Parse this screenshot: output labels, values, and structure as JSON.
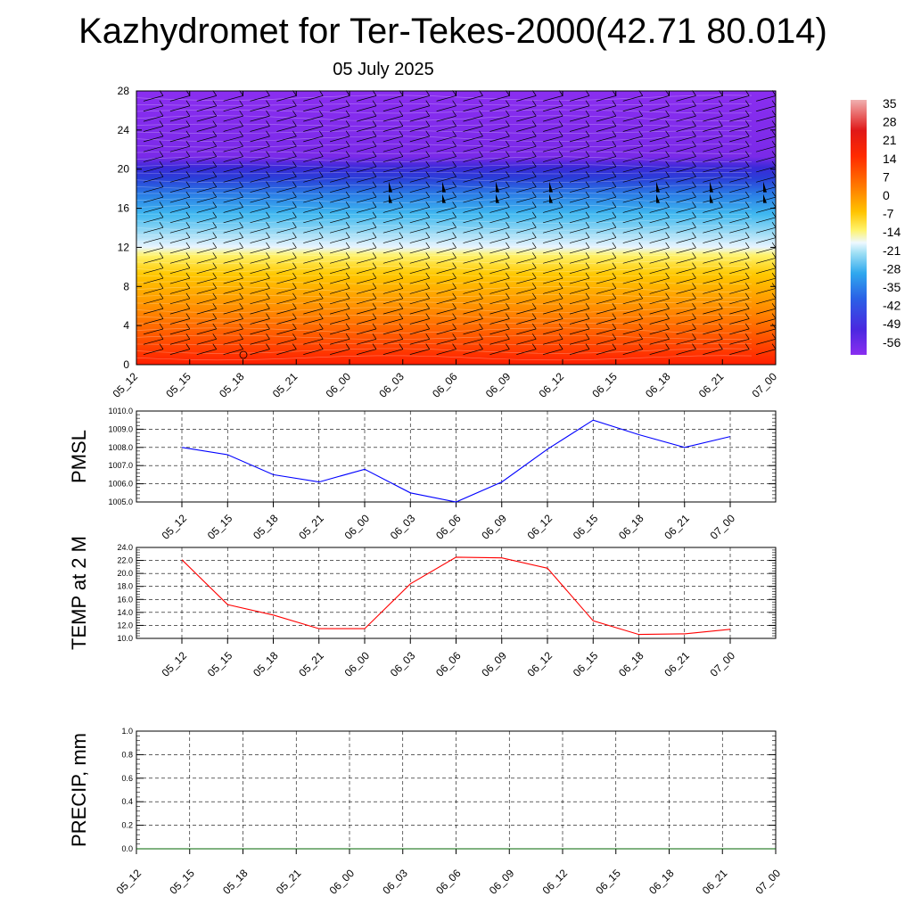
{
  "header": {
    "title": "Kazhydromet for Ter-Tekes-2000(42.71 80.014)",
    "subtitle": "05 July 2025"
  },
  "time_labels": [
    "05_12",
    "05_15",
    "05_18",
    "05_21",
    "06_00",
    "06_03",
    "06_06",
    "06_09",
    "06_12",
    "06_15",
    "06_18",
    "06_21",
    "07_00"
  ],
  "colors": {
    "pmsl_line": "#0000ff",
    "temp_line": "#ff0000",
    "precip_line": "#006400",
    "grid": "#000000"
  },
  "chart_data": [
    {
      "type": "heatmap",
      "name": "upper-air-section",
      "y_ticks": [
        0,
        4,
        8,
        12,
        16,
        20,
        24,
        28
      ],
      "ylim": [
        0,
        28
      ],
      "colorbar_labels": [
        "35",
        "28",
        "21",
        "14",
        "7",
        "0",
        "-7",
        "-14",
        "-21",
        "-28",
        "-35",
        "-42",
        "-49",
        "-56"
      ],
      "colorbar_range": [
        -56,
        35
      ],
      "has_wind_barbs": true
    },
    {
      "type": "line",
      "name": "pmsl",
      "ylabel": "PMSL",
      "ylim": [
        1005,
        1010
      ],
      "y_ticks": [
        "1005.0",
        "1006.0",
        "1007.0",
        "1008.0",
        "1009.0",
        "1010.0"
      ],
      "categories": [
        "05_12",
        "05_15",
        "05_18",
        "05_21",
        "06_00",
        "06_03",
        "06_06",
        "06_09",
        "06_12",
        "06_15",
        "06_18",
        "06_21",
        "07_00"
      ],
      "values": [
        1008.0,
        1007.6,
        1006.5,
        1006.1,
        1006.8,
        1005.5,
        1005.0,
        1006.1,
        1007.9,
        1009.5,
        1008.7,
        1008.0,
        1008.6
      ],
      "grid": true
    },
    {
      "type": "line",
      "name": "temp",
      "ylabel": "TEMP at 2 M",
      "ylim": [
        10,
        24
      ],
      "y_ticks": [
        "10.0",
        "12.0",
        "14.0",
        "16.0",
        "18.0",
        "20.0",
        "22.0",
        "24.0"
      ],
      "categories": [
        "05_12",
        "05_15",
        "05_18",
        "05_21",
        "06_00",
        "06_03",
        "06_06",
        "06_09",
        "06_12",
        "06_15",
        "06_18",
        "06_21",
        "07_00"
      ],
      "values": [
        22.1,
        15.2,
        13.6,
        11.5,
        11.5,
        18.4,
        22.5,
        22.4,
        20.8,
        12.7,
        10.6,
        10.7,
        11.4
      ],
      "grid": true
    },
    {
      "type": "line",
      "name": "precip",
      "ylabel": "PRECIP, mm",
      "ylim": [
        0,
        1
      ],
      "y_ticks": [
        "0.0",
        "0.2",
        "0.4",
        "0.6",
        "0.8",
        "1.0"
      ],
      "categories": [
        "05_12",
        "05_15",
        "05_18",
        "05_21",
        "06_00",
        "06_03",
        "06_06",
        "06_09",
        "06_12",
        "06_15",
        "06_18",
        "06_21",
        "07_00"
      ],
      "values": [
        0,
        0,
        0,
        0,
        0,
        0,
        0,
        0,
        0,
        0,
        0,
        0,
        0
      ],
      "grid": true
    }
  ]
}
